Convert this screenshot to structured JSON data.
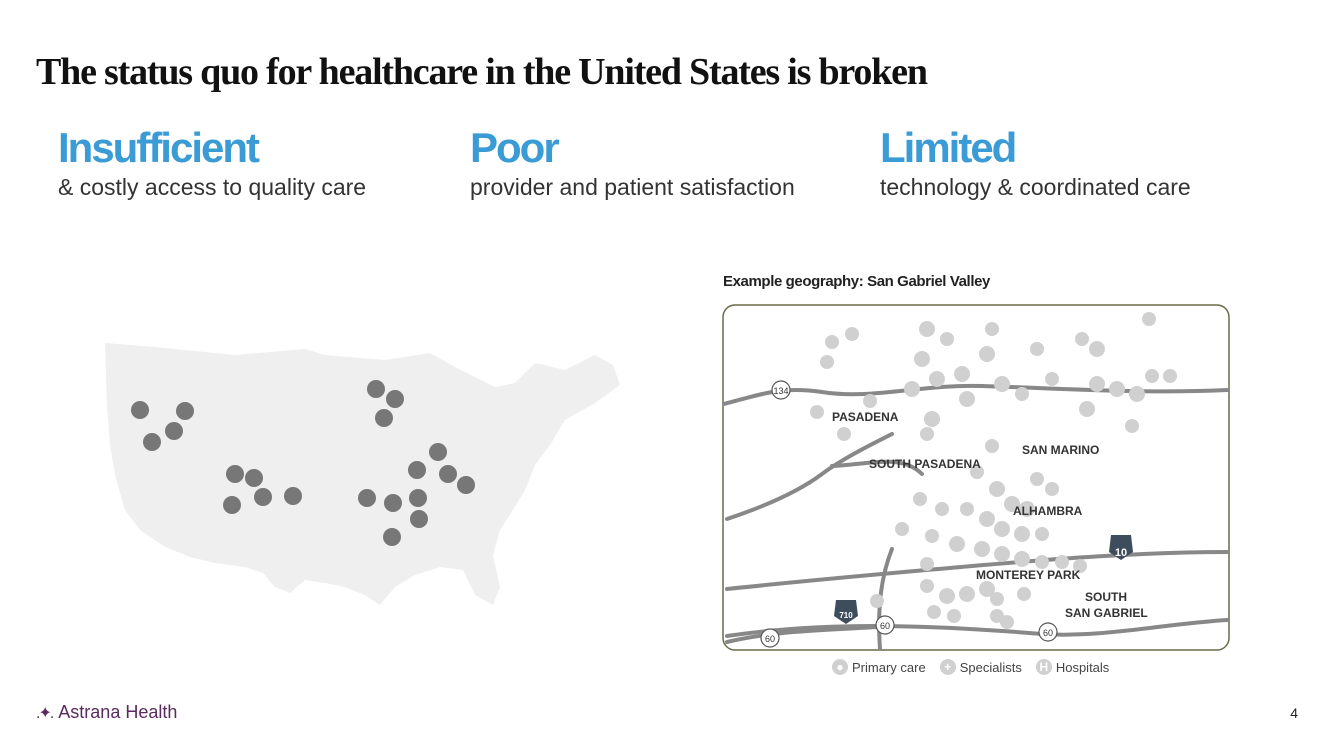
{
  "title": "The status quo for healthcare in the United States is broken",
  "pillars": [
    {
      "heading": "Insufficient",
      "subtext": "& costly access to quality care"
    },
    {
      "heading": "Poor",
      "subtext": "provider and patient satisfaction"
    },
    {
      "heading": "Limited",
      "subtext": "technology & coordinated care"
    }
  ],
  "map": {
    "caption": "Example geography: San Gabriel Valley",
    "places": [
      "PASADENA",
      "SAN MARINO",
      "SOUTH PASADENA",
      "ALHAMBRA",
      "MONTEREY PARK",
      "SOUTH",
      "SAN GABRIEL"
    ],
    "highways": [
      "134",
      "10",
      "710",
      "60",
      "60",
      "60"
    ]
  },
  "legend": [
    {
      "label": "Primary care",
      "icon": "person-icon"
    },
    {
      "label": "Specialists",
      "icon": "plus-icon"
    },
    {
      "label": "Hospitals",
      "icon": "hospital-icon"
    }
  ],
  "footer": {
    "brand": "Astrana Health",
    "page": "4"
  },
  "colors": {
    "accent": "#3a9bd5",
    "brand": "#5a2a5e",
    "marker": "#777777"
  }
}
